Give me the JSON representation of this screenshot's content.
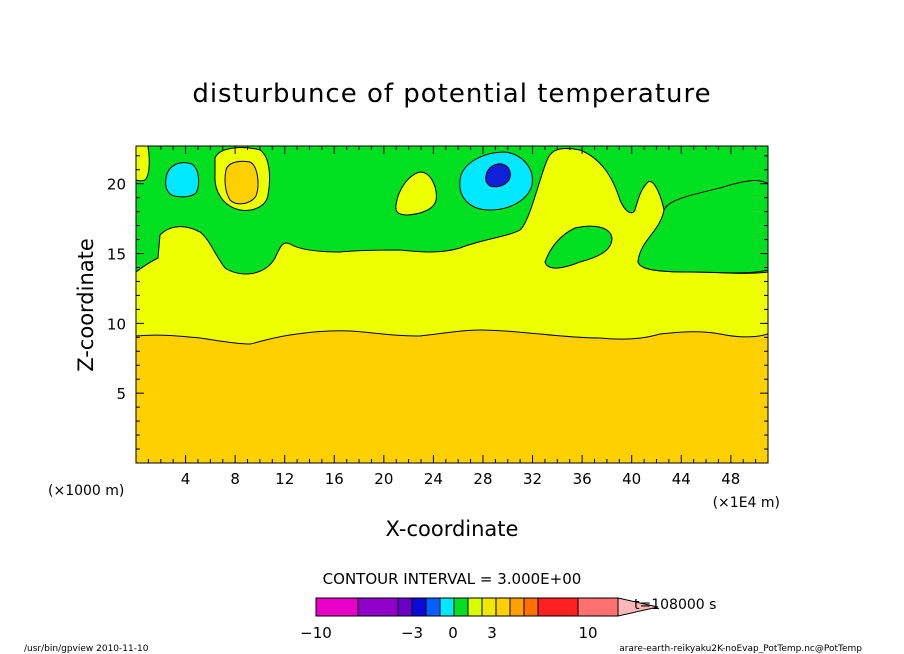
{
  "chart_data": {
    "type": "heatmap",
    "title": "disturbunce of potential temperature",
    "xlabel": "X-coordinate",
    "ylabel": "Z-coordinate",
    "x_unit_left": "(×1000 m)",
    "x_unit_right": "(×1E4 m)",
    "xlim": [
      0,
      51
    ],
    "ylim": [
      0,
      22.7
    ],
    "x_ticks": [
      4,
      8,
      12,
      16,
      20,
      24,
      28,
      32,
      36,
      40,
      44,
      48
    ],
    "x_tick_labels": [
      "4",
      "8",
      "12",
      "16",
      "20",
      "24",
      "28",
      "32",
      "36",
      "40",
      "44",
      "48"
    ],
    "y_ticks": [
      5,
      10,
      15,
      20
    ],
    "y_tick_labels": [
      "5",
      "10",
      "15",
      "20"
    ],
    "contour_interval": "CONTOUR INTERVAL = 3.000E+00",
    "time_label": "t=108000 s",
    "colorbar": {
      "boundaries": [
        -10,
        -3,
        0,
        3,
        10
      ],
      "labels": [
        "−10",
        "−3",
        "0",
        "3",
        "10"
      ],
      "colors": [
        "#e800c8",
        "#9000c8",
        "#6a00c8",
        "#0a0ad8",
        "#0060ff",
        "#00e8ff",
        "#00e020",
        "#d8ff00",
        "#f0e800",
        "#ffd000",
        "#ffa000",
        "#ff7000",
        "#ff2020",
        "#ff7070",
        "#ffb8b8"
      ]
    },
    "fill_levels": {
      "deep_blue": "#1020d8",
      "cyan": "#00e8ff",
      "green": "#00e020",
      "yellow": "#eeff00",
      "orange": "#ffd000"
    },
    "regions": [
      {
        "level": "orange",
        "description_value": "disturbance 3 to 6",
        "z_range": [
          0,
          9.3
        ]
      },
      {
        "level": "yellow",
        "description_value": "disturbance 0 to 3",
        "z_range": [
          9.3,
          15.5
        ]
      },
      {
        "level": "green",
        "description_value": "disturbance -3 to 0",
        "z_range": [
          15.5,
          22.7
        ]
      },
      {
        "level": "cyan",
        "center": [
          4,
          20.4
        ]
      },
      {
        "level": "cyan",
        "center": [
          28.5,
          20.3
        ]
      },
      {
        "level": "deep_blue",
        "center": [
          30,
          20.5
        ]
      },
      {
        "level": "yellow",
        "center": [
          22.5,
          19.5
        ]
      },
      {
        "level": "orange",
        "center": [
          8.5,
          20.3
        ]
      }
    ]
  },
  "footer": {
    "left": "/usr/bin/gpview  2010-11-10",
    "right": "arare-earth-reikyaku2K-noEvap_PotTemp.nc@PotTemp"
  }
}
